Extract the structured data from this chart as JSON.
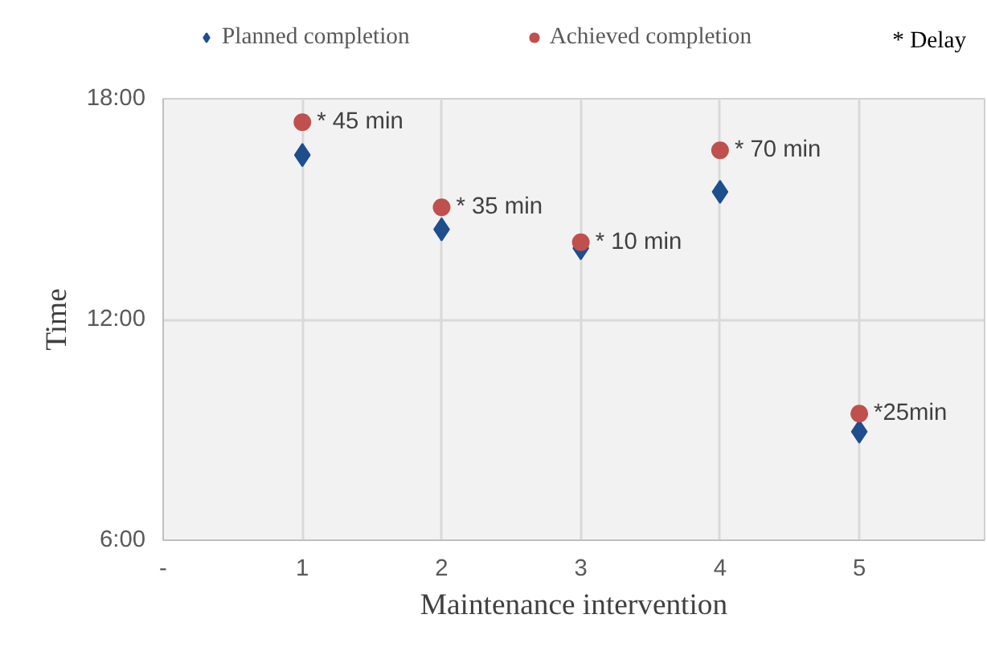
{
  "chart_data": {
    "type": "scatter",
    "xlabel": "Maintenance intervention",
    "ylabel": "Time",
    "x": [
      1,
      2,
      3,
      4,
      5
    ],
    "series": [
      {
        "name": "Planned completion",
        "color": "#1f4e8c",
        "marker": "diamond",
        "values": [
          16.47,
          14.45,
          13.94,
          15.47,
          8.95
        ]
      },
      {
        "name": "Achieved completion",
        "color": "#c0504d",
        "marker": "circle",
        "values": [
          17.36,
          15.05,
          14.1,
          16.6,
          9.44
        ]
      }
    ],
    "xlim": [
      0,
      5.9
    ],
    "xticks": [
      {
        "value": 0,
        "label": "-"
      },
      1,
      2,
      3,
      4,
      5
    ],
    "ylim": [
      6,
      18
    ],
    "yticks": [
      {
        "value": 6,
        "label": "6:00"
      },
      {
        "value": 12,
        "label": "12:00"
      },
      {
        "value": 18,
        "label": "18:00"
      }
    ],
    "annotations": [
      {
        "text": "* 45 min",
        "x": 1,
        "y": 17.36
      },
      {
        "text": "* 35 min",
        "x": 2,
        "y": 15.05
      },
      {
        "text": "* 10 min",
        "x": 3,
        "y": 14.1
      },
      {
        "text": "* 70 min",
        "x": 4,
        "y": 16.6
      },
      {
        "text": "*25min",
        "x": 5,
        "y": 9.44
      },
      "* Delay"
    ],
    "grid": true,
    "legend": "top"
  }
}
